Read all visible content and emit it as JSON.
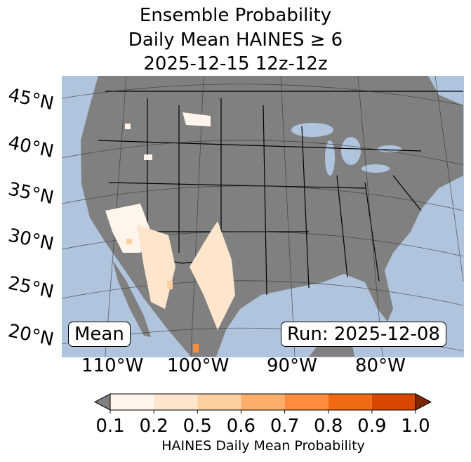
{
  "title": {
    "line1": "Ensemble Probability",
    "line2": "Daily Mean HAINES ≥ 6",
    "line3": "2025-12-15 12z-12z"
  },
  "map": {
    "ocean_color": "#b0c4de",
    "land_color": "#808080",
    "lat_labels": [
      "45°N",
      "40°N",
      "35°N",
      "30°N",
      "25°N",
      "20°N"
    ],
    "lon_labels": [
      "110°W",
      "100°W",
      "90°W",
      "80°W"
    ],
    "mean_label": "Mean",
    "run_label": "Run: 2025-12-08"
  },
  "colorbar": {
    "ticks": [
      "0.1",
      "0.2",
      "0.5",
      "0.6",
      "0.7",
      "0.8",
      "0.9",
      "1.0"
    ],
    "colors": [
      "#fff5eb",
      "#fee6ce",
      "#fdd0a2",
      "#fdae6b",
      "#fd8d3c",
      "#f16913",
      "#d94801",
      "#7f2704"
    ],
    "under_color": "#808080",
    "label": "HAINES Daily Mean Probability"
  }
}
